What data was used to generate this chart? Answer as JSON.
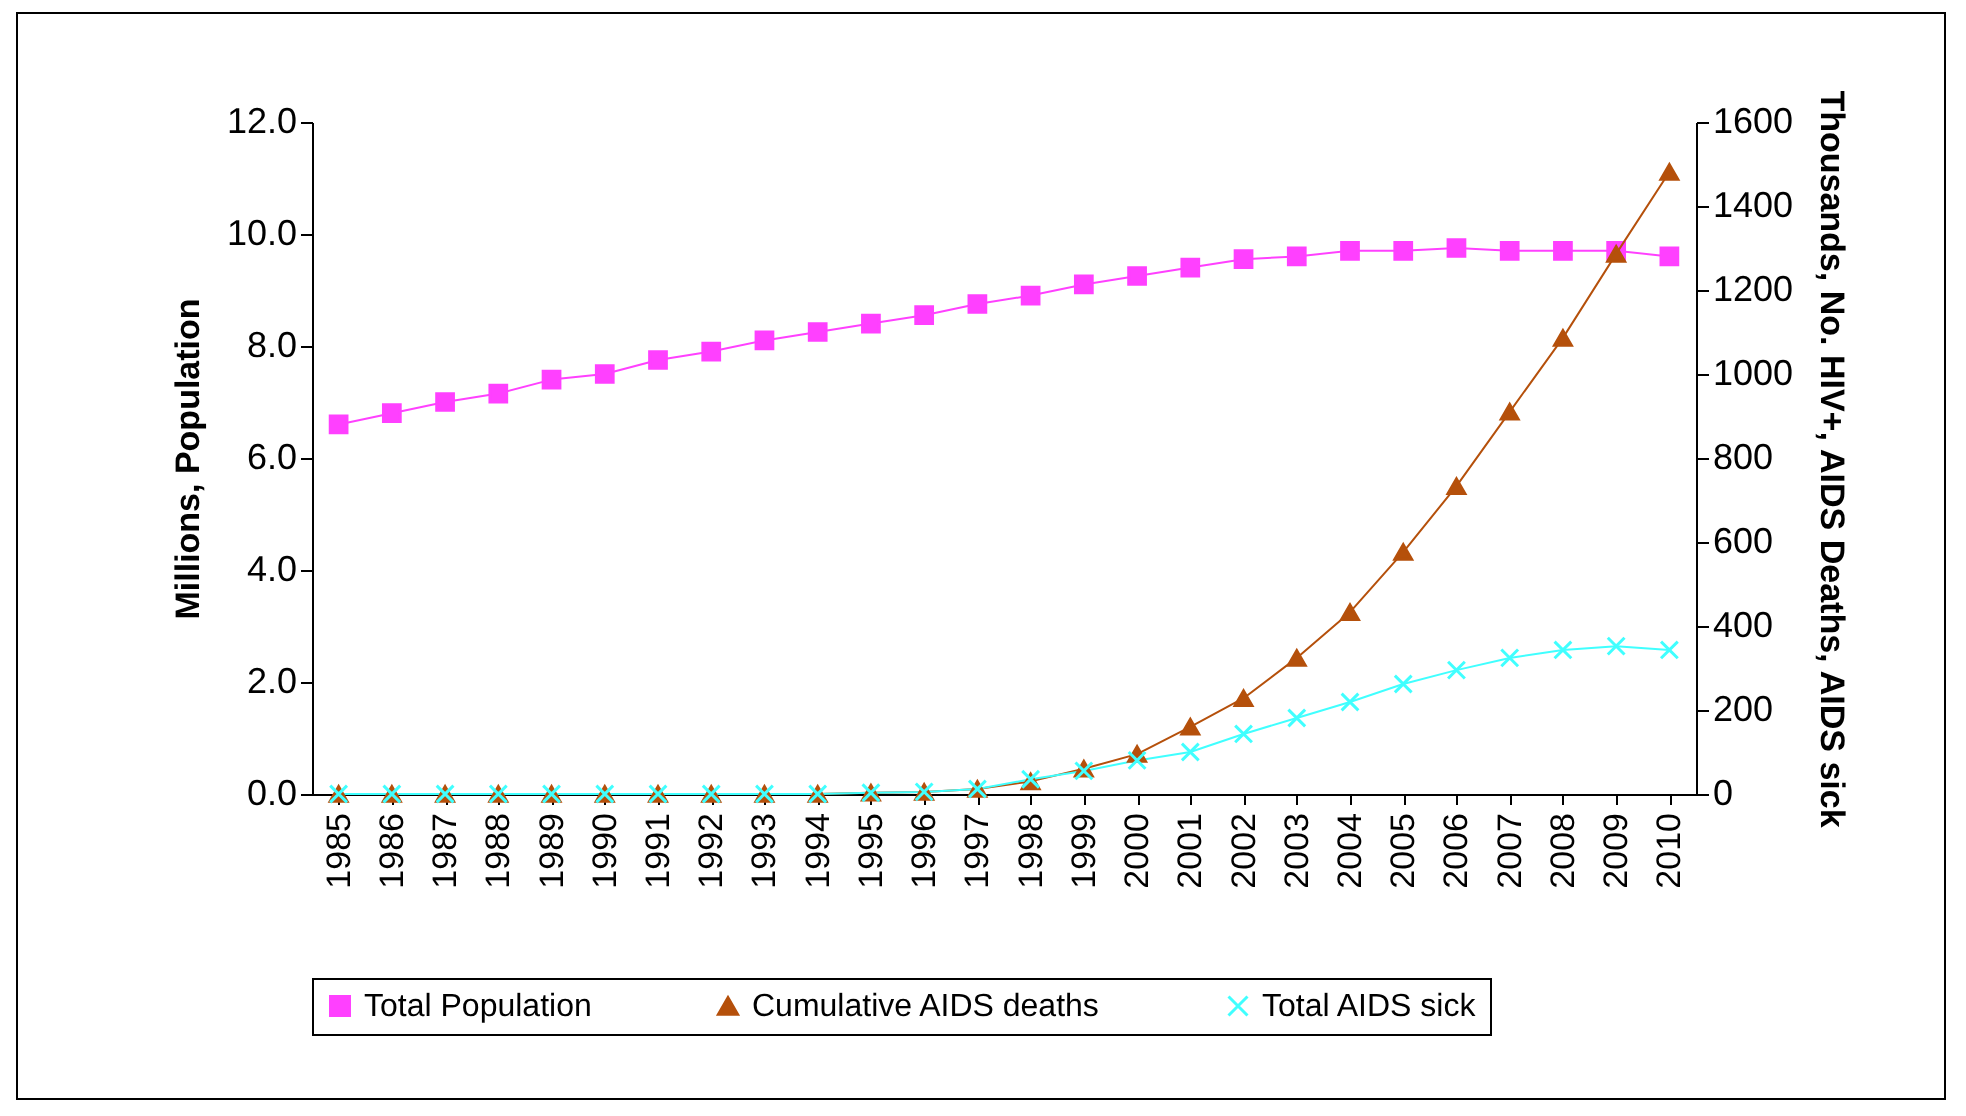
{
  "chart_data": {
    "type": "line",
    "ylabel": "Millions,  Population",
    "y2label": "Thousands, No. HIV+, AIDS Deaths, AIDS sick",
    "categories": [
      "1985",
      "1986",
      "1987",
      "1988",
      "1989",
      "1990",
      "1991",
      "1992",
      "1993",
      "1994",
      "1995",
      "1996",
      "1997",
      "1998",
      "1999",
      "2000",
      "2001",
      "2002",
      "2003",
      "2004",
      "2005",
      "2006",
      "2007",
      "2008",
      "2009",
      "2010"
    ],
    "series": [
      {
        "name": "Total Population",
        "color": "#ff40ff",
        "marker": "square",
        "values": [
          6.6,
          6.8,
          7.0,
          7.15,
          7.4,
          7.5,
          7.75,
          7.9,
          8.1,
          8.25,
          8.4,
          8.55,
          8.75,
          8.9,
          9.1,
          9.25,
          9.4,
          9.55,
          9.6,
          9.7,
          9.7,
          9.75,
          9.7,
          9.7,
          9.7,
          9.6
        ]
      },
      {
        "name": "Cumulative AIDS deaths",
        "color": "#b5500b",
        "marker": "triangle",
        "axis": "y2",
        "values": [
          0,
          0,
          0,
          0,
          0,
          0,
          0,
          0,
          0,
          0,
          3,
          5,
          12,
          30,
          60,
          95,
          160,
          228,
          324,
          433,
          576,
          733,
          910,
          1086,
          1286,
          1481
        ]
      },
      {
        "name": "Total AIDS sick",
        "color": "#40ffff",
        "marker": "cross",
        "axis": "y2",
        "values": [
          0,
          0,
          0,
          0,
          0,
          0,
          0,
          0,
          0,
          0,
          3,
          5,
          12,
          35,
          55,
          80,
          100,
          143,
          181,
          219,
          262,
          295,
          324,
          343,
          352,
          343
        ]
      }
    ],
    "ylim": [
      0,
      12
    ],
    "yticks": [
      {
        "value": 0,
        "label": "0.0"
      },
      {
        "value": 2,
        "label": "2.0"
      },
      {
        "value": 4,
        "label": "4.0"
      },
      {
        "value": 6,
        "label": "6.0"
      },
      {
        "value": 8,
        "label": "8.0"
      },
      {
        "value": 10,
        "label": "10.0"
      },
      {
        "value": 12,
        "label": "12.0"
      }
    ],
    "y2lim": [
      0,
      1600
    ],
    "y2ticks": [
      0,
      200,
      400,
      600,
      800,
      1000,
      1200,
      1400,
      1600
    ],
    "grid": false,
    "legend": "bottom"
  }
}
